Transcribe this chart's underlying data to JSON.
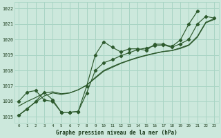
{
  "title": "Graphe pression niveau de la mer (hPa)",
  "bg_color": "#cce8dc",
  "grid_color": "#a8d4c4",
  "line_color": "#2d5a2d",
  "x_labels": [
    "0",
    "1",
    "2",
    "3",
    "4",
    "5",
    "6",
    "7",
    "8",
    "9",
    "10",
    "11",
    "12",
    "13",
    "14",
    "15",
    "16",
    "17",
    "18",
    "19",
    "20",
    "21",
    "22",
    "23"
  ],
  "ylim": [
    1014.6,
    1022.4
  ],
  "yticks": [
    1015,
    1016,
    1017,
    1018,
    1019,
    1020,
    1021,
    1022
  ],
  "line1_marked": [
    1016.0,
    1016.6,
    1016.7,
    1016.1,
    1016.0,
    1015.3,
    1015.3,
    1015.35,
    1017.0,
    1019.0,
    1019.85,
    1019.5,
    1019.2,
    1019.4,
    1019.4,
    1019.3,
    1019.7,
    1019.7,
    1019.55,
    1019.97,
    1021.0,
    1021.82,
    null,
    null
  ],
  "line2_marked": [
    1015.1,
    1015.5,
    1016.0,
    1016.6,
    1016.1,
    1015.3,
    1015.3,
    1015.35,
    1016.55,
    1018.0,
    1018.5,
    1018.7,
    1018.95,
    1019.15,
    1019.35,
    1019.45,
    1019.6,
    1019.65,
    1019.5,
    1019.72,
    1020.0,
    1021.0,
    1021.5,
    1021.38
  ],
  "line3_smooth": [
    1015.1,
    1015.55,
    1015.95,
    1016.35,
    1016.55,
    1016.45,
    1016.55,
    1016.75,
    1017.05,
    1017.5,
    1017.95,
    1018.2,
    1018.45,
    1018.65,
    1018.82,
    1018.97,
    1019.1,
    1019.22,
    1019.28,
    1019.42,
    1019.62,
    1020.15,
    1021.08,
    1021.3
  ],
  "line4_smooth": [
    1015.7,
    1016.0,
    1016.25,
    1016.55,
    1016.62,
    1016.5,
    1016.55,
    1016.75,
    1017.05,
    1017.55,
    1018.0,
    1018.25,
    1018.48,
    1018.67,
    1018.85,
    1018.99,
    1019.12,
    1019.23,
    1019.29,
    1019.46,
    1019.66,
    1020.2,
    1021.12,
    1021.35
  ]
}
